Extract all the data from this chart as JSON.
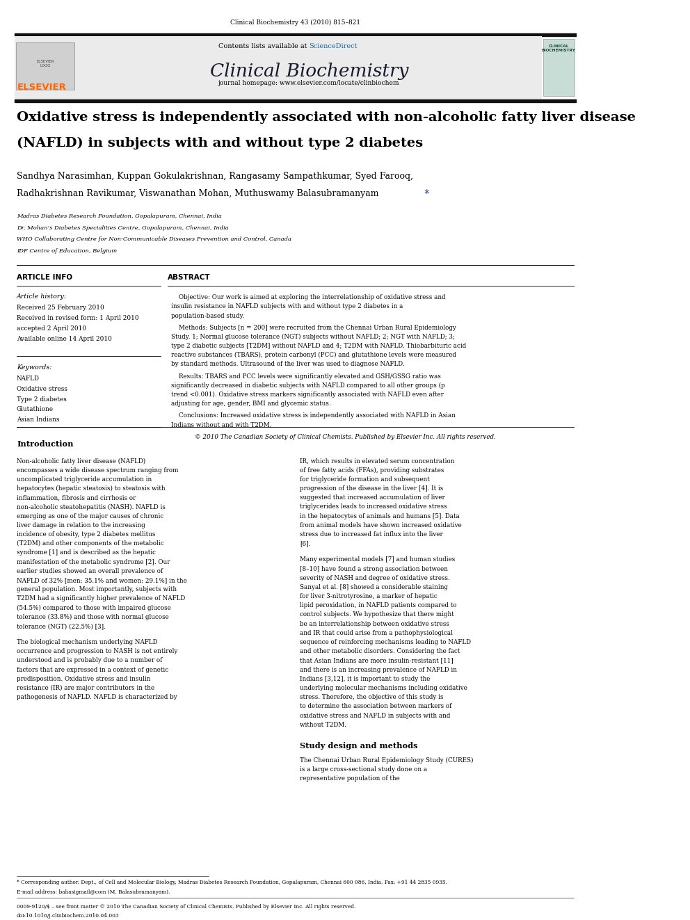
{
  "page_width": 9.92,
  "page_height": 13.23,
  "bg_color": "#ffffff",
  "header_citation": "Clinical Biochemistry 43 (2010) 815–821",
  "journal_name": "Clinical Biochemistry",
  "contents_text": "Contents lists available at ScienceDirect",
  "sciencedirect_color": "#1a6699",
  "journal_homepage": "journal homepage: www.elsevier.com/locate/clinbiochem",
  "article_title_line1": "Oxidative stress is independently associated with non-alcoholic fatty liver disease",
  "article_title_line2": "(NAFLD) in subjects with and without type 2 diabetes",
  "authors": "Sandhya Narasimhan, Kuppan Gokulakrishnan, Rangasamy Sampathkumar, Syed Farooq,",
  "authors2": "Radhakrishnan Ravikumar, Viswanathan Mohan, Muthuswamy Balasubramanyam",
  "affil1": "Madras Diabetes Research Foundation, Gopalapuram, Chennai, India",
  "affil2": "Dr. Mohan’s Diabetes Specialities Centre, Gopalapuram, Chennai, India",
  "affil3": "WHO Collaborating Centre for Non-Communicable Diseases Prevention and Control, Canada",
  "affil4": "IDF Centre of Education, Belgium",
  "section_article_info": "ARTICLE INFO",
  "section_abstract": "ABSTRACT",
  "article_history_label": "Article history:",
  "received1": "Received 25 February 2010",
  "received2": "Received in revised form: 1 April 2010",
  "accepted": "accepted 2 April 2010",
  "available": "Available online 14 April 2010",
  "keywords_label": "Keywords:",
  "kw1": "NAFLD",
  "kw2": "Oxidative stress",
  "kw3": "Type 2 diabetes",
  "kw4": "Glutathione",
  "kw5": "Asian Indians",
  "abstract_objective": "Objective: Our work is aimed at exploring the interrelationship of oxidative stress and insulin resistance in NAFLD subjects with and without type 2 diabetes in a population-based study.",
  "abstract_methods": "Methods: Subjects [n = 200] were recruited from the Chennai Urban Rural Epidemiology Study. 1; Normal glucose tolerance (NGT) subjects without NAFLD; 2; NGT with NAFLD; 3; type 2 diabetic subjects [T2DM] without NAFLD and 4; T2DM with NAFLD. Thiobarbituric acid reactive substances (TBARS), protein carbonyl (PCC) and glutathione levels were measured by standard methods. Ultrasound of the liver was used to diagnose NAFLD.",
  "abstract_results": "Results: TBARS and PCC levels were significantly elevated and GSH/GSSG ratio was significantly decreased in diabetic subjects with NAFLD compared to all other groups (p trend <0.001). Oxidative stress markers significantly associated with NAFLD even after adjusting for age, gender, BMI and glycemic status.",
  "abstract_conclusions": "Conclusions: Increased oxidative stress is independently associated with NAFLD in Asian Indians without and with T2DM.",
  "abstract_copyright": "© 2010 The Canadian Society of Clinical Chemists. Published by Elsevier Inc. All rights reserved.",
  "intro_heading": "Introduction",
  "intro_col1_p1": "Non-alcoholic fatty liver disease (NAFLD) encompasses a wide disease spectrum ranging from uncomplicated triglyceride accumulation in hepatocytes (hepatic steatosis) to steatosis with inflammation, fibrosis and cirrhosis or non-alcoholic steatohepatitis (NASH). NAFLD is emerging as one of the major causes of chronic liver damage in relation to the increasing incidence of obesity, type 2 diabetes mellitus (T2DM) and other components of the metabolic syndrome [1] and is described as the hepatic manifestation of the metabolic syndrome [2]. Our earlier studies showed an overall prevalence of NAFLD of 32% [men: 35.1% and women: 29.1%] in the general population. Most importantly, subjects with T2DM had a significantly higher prevalence of NAFLD (54.5%) compared to those with impaired glucose tolerance (33.8%) and those with normal glucose tolerance (NGT) (22.5%) [3].",
  "intro_col1_p2": "The biological mechanism underlying NAFLD occurrence and progression to NASH is not entirely understood and is probably due to a number of factors that are expressed in a context of genetic predisposition. Oxidative stress and insulin resistance (IR) are major contributors in the pathogenesis of NAFLD. NAFLD is characterized by",
  "intro_col2_p1": "IR, which results in elevated serum concentration of free fatty acids (FFAs), providing substrates for triglyceride formation and subsequent progression of the disease in the liver [4]. It is suggested that increased accumulation of liver triglycerides leads to increased oxidative stress in the hepatocytes of animals and humans [5]. Data from animal models have shown increased oxidative stress due to increased fat influx into the liver [6].",
  "intro_col2_p2": "Many experimental models [7] and human studies [8–10] have found a strong association between severity of NASH and degree of oxidative stress. Sanyal et al. [8] showed a considerable staining for liver 3-nitrotyrosine, a marker of hepatic lipid peroxidation, in NAFLD patients compared to control subjects. We hypothesize that there might be an interrelationship between oxidative stress and IR that could arise from a pathophysiological sequence of reinforcing mechanisms leading to NAFLD and other metabolic disorders. Considering the fact that Asian Indians are more insulin-resistant [11] and there is an increasing prevalence of NAFLD in Indians [3,12], it is important to study the underlying molecular mechanisms including oxidative stress. Therefore, the objective of this study is to determine the association between markers of oxidative stress and NAFLD in subjects with and without T2DM.",
  "study_design_heading": "Study design and methods",
  "study_design_p1": "The Chennai Urban Rural Epidemiology Study (CURES) is a large cross-sectional study done on a representative population of the",
  "footnote_star": "* Corresponding author. Dept., of Cell and Molecular Biology, Madras Diabetes Research Foundation, Gopalapuram, Chennai 600 086, India. Fax: +91 44 2835 0935.",
  "footnote_email": "E-mail address: bahasigmail@com (M. Balasubramanyam).",
  "footer_line1": "0009-9120/$ – see front matter © 2010 The Canadian Society of Clinical Chemists. Published by Elsevier Inc. All rights reserved.",
  "footer_line2": "doi:10.1016/j.clinbiochem.2010.04.003",
  "top_bar_color": "#1a1a1a",
  "header_bg_color": "#e8e8e8",
  "elsevier_color": "#ff6600",
  "star_color": "#2244aa"
}
